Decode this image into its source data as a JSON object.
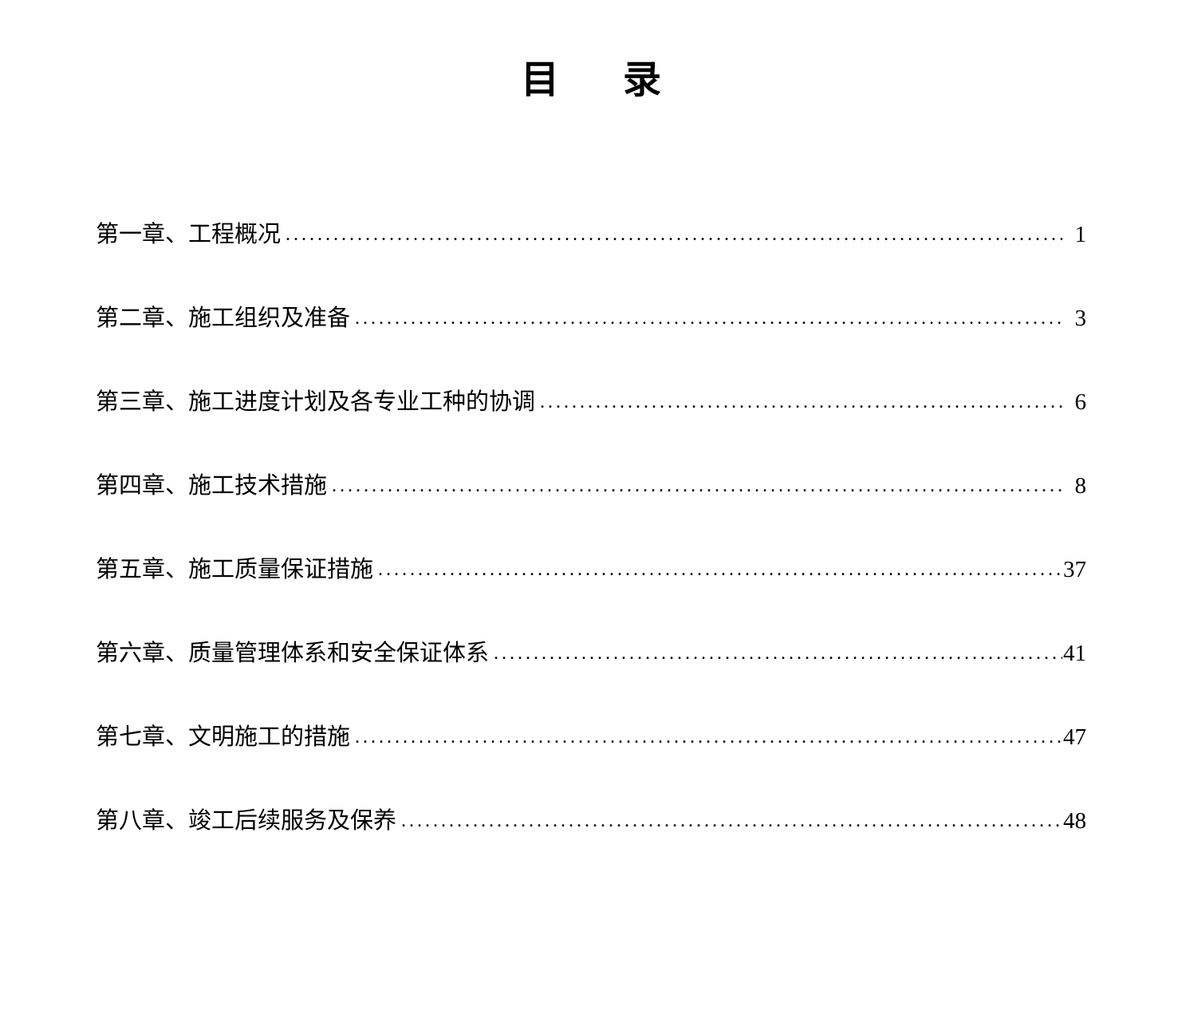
{
  "title": "目录",
  "title_fontsize": 48,
  "entry_fontsize": 29,
  "text_color": "#000000",
  "background_color": "#ffffff",
  "entries": [
    {
      "label": "第一章、工程概况",
      "page": "1"
    },
    {
      "label": "第二章、施工组织及准备",
      "page": "3"
    },
    {
      "label": "第三章、施工进度计划及各专业工种的协调",
      "page": "6"
    },
    {
      "label": "第四章、施工技术措施",
      "page": "8"
    },
    {
      "label": "第五章、施工质量保证措施",
      "page": "37"
    },
    {
      "label": "第六章、质量管理体系和安全保证体系",
      "page": "41"
    },
    {
      "label": "第七章、文明施工的措施",
      "page": "47"
    },
    {
      "label": "第八章、竣工后续服务及保养",
      "page": "48"
    }
  ]
}
